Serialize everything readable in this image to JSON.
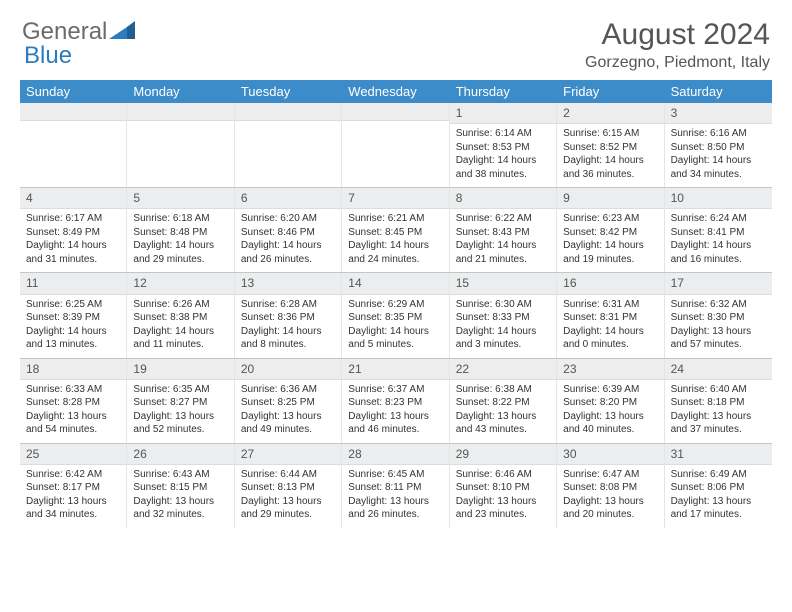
{
  "brand": {
    "part1": "General",
    "part2": "Blue",
    "logo_color": "#2b7bbf",
    "text_color": "#6b6b6b"
  },
  "title": "August 2024",
  "location": "Gorzegno, Piedmont, Italy",
  "header_bg": "#3c8cc9",
  "day_names": [
    "Sunday",
    "Monday",
    "Tuesday",
    "Wednesday",
    "Thursday",
    "Friday",
    "Saturday"
  ],
  "weeks": [
    [
      {
        "date": "",
        "lines": []
      },
      {
        "date": "",
        "lines": []
      },
      {
        "date": "",
        "lines": []
      },
      {
        "date": "",
        "lines": []
      },
      {
        "date": "1",
        "lines": [
          "Sunrise: 6:14 AM",
          "Sunset: 8:53 PM",
          "Daylight: 14 hours",
          "and 38 minutes."
        ]
      },
      {
        "date": "2",
        "lines": [
          "Sunrise: 6:15 AM",
          "Sunset: 8:52 PM",
          "Daylight: 14 hours",
          "and 36 minutes."
        ]
      },
      {
        "date": "3",
        "lines": [
          "Sunrise: 6:16 AM",
          "Sunset: 8:50 PM",
          "Daylight: 14 hours",
          "and 34 minutes."
        ]
      }
    ],
    [
      {
        "date": "4",
        "lines": [
          "Sunrise: 6:17 AM",
          "Sunset: 8:49 PM",
          "Daylight: 14 hours",
          "and 31 minutes."
        ]
      },
      {
        "date": "5",
        "lines": [
          "Sunrise: 6:18 AM",
          "Sunset: 8:48 PM",
          "Daylight: 14 hours",
          "and 29 minutes."
        ]
      },
      {
        "date": "6",
        "lines": [
          "Sunrise: 6:20 AM",
          "Sunset: 8:46 PM",
          "Daylight: 14 hours",
          "and 26 minutes."
        ]
      },
      {
        "date": "7",
        "lines": [
          "Sunrise: 6:21 AM",
          "Sunset: 8:45 PM",
          "Daylight: 14 hours",
          "and 24 minutes."
        ]
      },
      {
        "date": "8",
        "lines": [
          "Sunrise: 6:22 AM",
          "Sunset: 8:43 PM",
          "Daylight: 14 hours",
          "and 21 minutes."
        ]
      },
      {
        "date": "9",
        "lines": [
          "Sunrise: 6:23 AM",
          "Sunset: 8:42 PM",
          "Daylight: 14 hours",
          "and 19 minutes."
        ]
      },
      {
        "date": "10",
        "lines": [
          "Sunrise: 6:24 AM",
          "Sunset: 8:41 PM",
          "Daylight: 14 hours",
          "and 16 minutes."
        ]
      }
    ],
    [
      {
        "date": "11",
        "lines": [
          "Sunrise: 6:25 AM",
          "Sunset: 8:39 PM",
          "Daylight: 14 hours",
          "and 13 minutes."
        ]
      },
      {
        "date": "12",
        "lines": [
          "Sunrise: 6:26 AM",
          "Sunset: 8:38 PM",
          "Daylight: 14 hours",
          "and 11 minutes."
        ]
      },
      {
        "date": "13",
        "lines": [
          "Sunrise: 6:28 AM",
          "Sunset: 8:36 PM",
          "Daylight: 14 hours",
          "and 8 minutes."
        ]
      },
      {
        "date": "14",
        "lines": [
          "Sunrise: 6:29 AM",
          "Sunset: 8:35 PM",
          "Daylight: 14 hours",
          "and 5 minutes."
        ]
      },
      {
        "date": "15",
        "lines": [
          "Sunrise: 6:30 AM",
          "Sunset: 8:33 PM",
          "Daylight: 14 hours",
          "and 3 minutes."
        ]
      },
      {
        "date": "16",
        "lines": [
          "Sunrise: 6:31 AM",
          "Sunset: 8:31 PM",
          "Daylight: 14 hours",
          "and 0 minutes."
        ]
      },
      {
        "date": "17",
        "lines": [
          "Sunrise: 6:32 AM",
          "Sunset: 8:30 PM",
          "Daylight: 13 hours",
          "and 57 minutes."
        ]
      }
    ],
    [
      {
        "date": "18",
        "lines": [
          "Sunrise: 6:33 AM",
          "Sunset: 8:28 PM",
          "Daylight: 13 hours",
          "and 54 minutes."
        ]
      },
      {
        "date": "19",
        "lines": [
          "Sunrise: 6:35 AM",
          "Sunset: 8:27 PM",
          "Daylight: 13 hours",
          "and 52 minutes."
        ]
      },
      {
        "date": "20",
        "lines": [
          "Sunrise: 6:36 AM",
          "Sunset: 8:25 PM",
          "Daylight: 13 hours",
          "and 49 minutes."
        ]
      },
      {
        "date": "21",
        "lines": [
          "Sunrise: 6:37 AM",
          "Sunset: 8:23 PM",
          "Daylight: 13 hours",
          "and 46 minutes."
        ]
      },
      {
        "date": "22",
        "lines": [
          "Sunrise: 6:38 AM",
          "Sunset: 8:22 PM",
          "Daylight: 13 hours",
          "and 43 minutes."
        ]
      },
      {
        "date": "23",
        "lines": [
          "Sunrise: 6:39 AM",
          "Sunset: 8:20 PM",
          "Daylight: 13 hours",
          "and 40 minutes."
        ]
      },
      {
        "date": "24",
        "lines": [
          "Sunrise: 6:40 AM",
          "Sunset: 8:18 PM",
          "Daylight: 13 hours",
          "and 37 minutes."
        ]
      }
    ],
    [
      {
        "date": "25",
        "lines": [
          "Sunrise: 6:42 AM",
          "Sunset: 8:17 PM",
          "Daylight: 13 hours",
          "and 34 minutes."
        ]
      },
      {
        "date": "26",
        "lines": [
          "Sunrise: 6:43 AM",
          "Sunset: 8:15 PM",
          "Daylight: 13 hours",
          "and 32 minutes."
        ]
      },
      {
        "date": "27",
        "lines": [
          "Sunrise: 6:44 AM",
          "Sunset: 8:13 PM",
          "Daylight: 13 hours",
          "and 29 minutes."
        ]
      },
      {
        "date": "28",
        "lines": [
          "Sunrise: 6:45 AM",
          "Sunset: 8:11 PM",
          "Daylight: 13 hours",
          "and 26 minutes."
        ]
      },
      {
        "date": "29",
        "lines": [
          "Sunrise: 6:46 AM",
          "Sunset: 8:10 PM",
          "Daylight: 13 hours",
          "and 23 minutes."
        ]
      },
      {
        "date": "30",
        "lines": [
          "Sunrise: 6:47 AM",
          "Sunset: 8:08 PM",
          "Daylight: 13 hours",
          "and 20 minutes."
        ]
      },
      {
        "date": "31",
        "lines": [
          "Sunrise: 6:49 AM",
          "Sunset: 8:06 PM",
          "Daylight: 13 hours",
          "and 17 minutes."
        ]
      }
    ]
  ]
}
